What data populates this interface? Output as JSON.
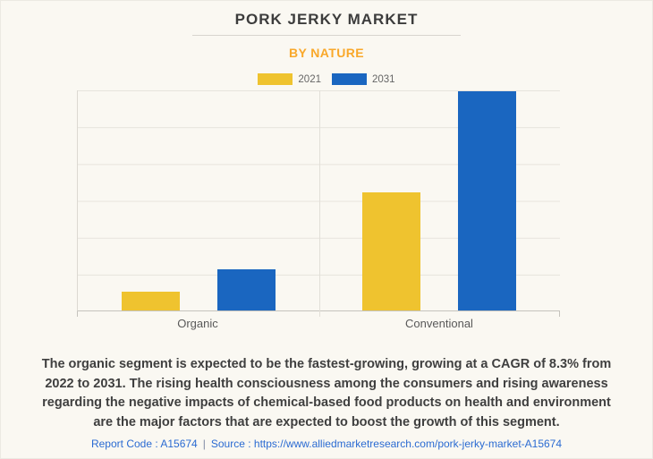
{
  "header": {
    "title": "PORK JERKY MARKET",
    "subtitle": "BY NATURE"
  },
  "chart_data": {
    "type": "bar",
    "title": "PORK JERKY MARKET",
    "subtitle": "BY NATURE",
    "categories": [
      "Organic",
      "Conventional"
    ],
    "series": [
      {
        "name": "2021",
        "color": "#efc32f",
        "values": [
          8.5,
          53.8
        ]
      },
      {
        "name": "2031",
        "color": "#1a66c0",
        "values": [
          18.6,
          99.6
        ]
      }
    ],
    "xlabel": "",
    "ylabel": "",
    "ylim": [
      0,
      100
    ],
    "y_axis_tick_labels_visible": false,
    "values_note": "Y axis has no numeric labels; values are bar heights as percent of the chart maximum (Conventional 2031 = ~100).",
    "grid": "horizontal, 7 lines / 6 intervals",
    "legend_position": "top"
  },
  "description": {
    "lines": [
      "The organic segment is expected to be the fastest-growing, growing at a CAGR of 8.3% from",
      "2022 to 2031. The rising health consciousness among the consumers and rising awareness",
      "regarding the negative impacts of chemical-based food products on health and environment",
      "are the major factors that are expected to boost the growth of this segment."
    ]
  },
  "footer": {
    "report_code": "Report Code : A15674",
    "separator": "|",
    "source_label": "Source :",
    "source_url": "https://www.alliedmarketresearch.com/pork-jerky-market-A15674"
  },
  "colors": {
    "background": "#faf8f2",
    "bar_2021_yellow": "#efc32f",
    "bar_2031_blue": "#1a66c0",
    "subtitle_orange": "#f9a82a",
    "title_text": "#3c3c3c",
    "footer_link_blue": "#2b6bd2"
  }
}
